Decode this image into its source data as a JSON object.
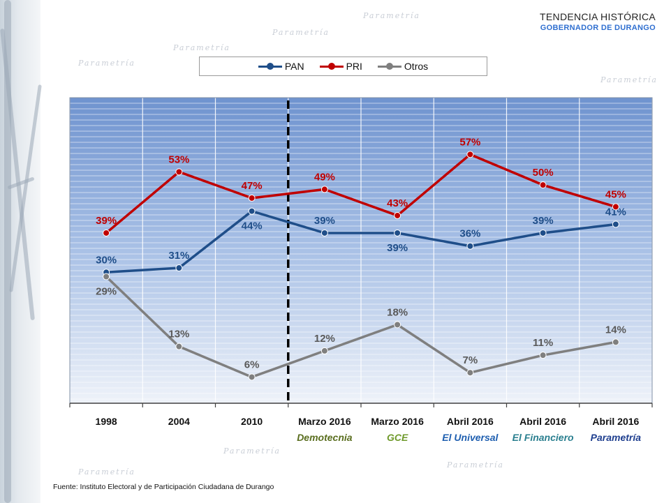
{
  "header": {
    "title": "TENDENCIA HISTÓRICA",
    "subtitle": "GOBERNADOR DE DURANGO"
  },
  "watermark": {
    "text": "Parametría"
  },
  "legend": [
    {
      "name": "PAN",
      "color": "#1f4e89"
    },
    {
      "name": "PRI",
      "color": "#c00000"
    },
    {
      "name": "Otros",
      "color": "#7f7f7f"
    }
  ],
  "chart_data": {
    "type": "line",
    "categories": [
      "1998",
      "2004",
      "2010",
      "Marzo 2016",
      "Marzo 2016",
      "Abril 2016",
      "Abril 2016",
      "Abril 2016"
    ],
    "sources": [
      {
        "text": "",
        "color": "#111111"
      },
      {
        "text": "",
        "color": "#111111"
      },
      {
        "text": "",
        "color": "#111111"
      },
      {
        "text": "Demotecnia",
        "color": "#5a6e1f"
      },
      {
        "text": "GCE",
        "color": "#6f9a2b"
      },
      {
        "text": "El Universal",
        "color": "#1f5fb0"
      },
      {
        "text": "El Financiero",
        "color": "#2a7f8f"
      },
      {
        "text": "Parametría",
        "color": "#1f3f8f"
      }
    ],
    "series": [
      {
        "name": "PAN",
        "color": "#1f4e89",
        "label_color": "#1f4e89",
        "values": [
          30,
          31,
          44,
          39,
          39,
          36,
          39,
          41
        ],
        "labels": [
          "30%",
          "31%",
          "44%",
          "39%",
          "39%",
          "36%",
          "39%",
          "41%"
        ],
        "label_pos": [
          "above",
          "above",
          "below",
          "above",
          "below",
          "above",
          "above",
          "above"
        ]
      },
      {
        "name": "PRI",
        "color": "#c00000",
        "label_color": "#c00000",
        "values": [
          39,
          53,
          47,
          49,
          43,
          57,
          50,
          45
        ],
        "labels": [
          "39%",
          "53%",
          "47%",
          "49%",
          "43%",
          "57%",
          "50%",
          "45%"
        ],
        "label_pos": [
          "above",
          "above",
          "above",
          "above",
          "above",
          "above",
          "above",
          "above"
        ]
      },
      {
        "name": "Otros",
        "color": "#7f7f7f",
        "label_color": "#595959",
        "values": [
          29,
          13,
          6,
          12,
          18,
          7,
          11,
          14
        ],
        "labels": [
          "29%",
          "13%",
          "6%",
          "12%",
          "18%",
          "7%",
          "11%",
          "14%"
        ],
        "label_pos": [
          "below",
          "above",
          "above",
          "above",
          "above",
          "above",
          "above",
          "above"
        ]
      }
    ],
    "separator_after_index": 2,
    "ylim": [
      0,
      70
    ],
    "grid": true
  },
  "footer": {
    "source": "Fuente: Instituto Electoral y de Participación Ciudadana de Durango"
  }
}
